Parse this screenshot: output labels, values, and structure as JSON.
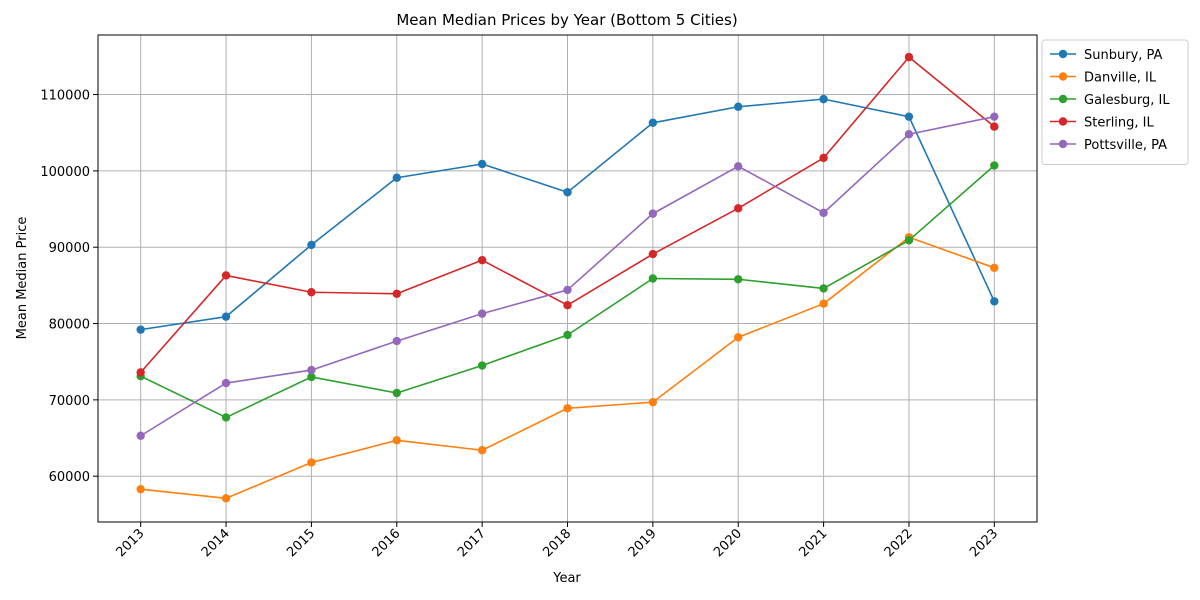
{
  "chart_data": {
    "type": "line",
    "title": "Mean Median Prices by Year (Bottom 5 Cities)",
    "xlabel": "Year",
    "ylabel": "Mean Median Price",
    "x": [
      "2013",
      "2014",
      "2015",
      "2016",
      "2017",
      "2018",
      "2019",
      "2020",
      "2021",
      "2022",
      "2023"
    ],
    "xlim": [
      2012.5,
      2023.5
    ],
    "ylim": [
      54000,
      117800
    ],
    "yticks": [
      "60000",
      "70000",
      "80000",
      "90000",
      "100000",
      "110000"
    ],
    "grid": true,
    "legend_placement": "outside-upper-right",
    "series": [
      {
        "name": "Sunbury, PA",
        "color": "#1f77b4",
        "values": [
          79200,
          80900,
          90300,
          99100,
          100900,
          97200,
          106300,
          108400,
          109400,
          107100,
          82900
        ]
      },
      {
        "name": "Danville, IL",
        "color": "#ff7f0e",
        "values": [
          58300,
          57100,
          61800,
          64700,
          63400,
          68900,
          69700,
          78200,
          82600,
          91300,
          87300
        ]
      },
      {
        "name": "Galesburg, IL",
        "color": "#2ca02c",
        "values": [
          73100,
          67700,
          73000,
          70900,
          74500,
          78500,
          85900,
          85800,
          84600,
          90900,
          100700
        ]
      },
      {
        "name": "Sterling, IL",
        "color": "#d62728",
        "values": [
          73600,
          86300,
          84100,
          83900,
          88300,
          82400,
          89100,
          95100,
          101700,
          114900,
          105800
        ]
      },
      {
        "name": "Pottsville, PA",
        "color": "#9467bd",
        "values": [
          65300,
          72200,
          73900,
          77700,
          81300,
          84400,
          94400,
          100600,
          94500,
          104800,
          107100
        ]
      }
    ]
  }
}
